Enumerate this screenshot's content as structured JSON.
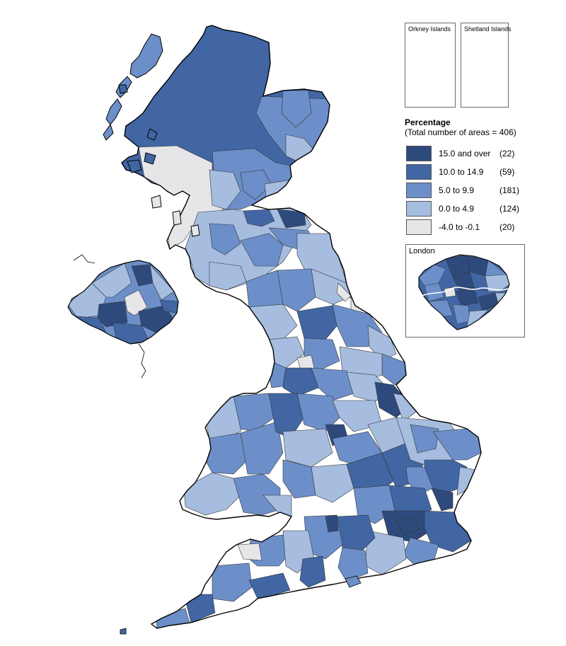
{
  "colors": {
    "c15": "#2e4a7c",
    "c10": "#4166a3",
    "c5": "#6c8fc9",
    "c0": "#a6bde0",
    "cneg": "#e6e6e8",
    "border": "#333333"
  },
  "insets": {
    "orkney": "Orkney Islands",
    "shetland": "Shetland Islands",
    "london": "London"
  },
  "legend": {
    "title": "Percentage",
    "subtitle": "(Total number of areas = 406)",
    "items": [
      {
        "range": "15.0 and over",
        "count": "(22)",
        "color": "#2e4a7c"
      },
      {
        "range": "10.0 to 14.9",
        "count": "(59)",
        "color": "#4166a3"
      },
      {
        "range": "5.0 to 9.9",
        "count": "(181)",
        "color": "#6c8fc9"
      },
      {
        "range": "0.0 to 4.9",
        "count": "(124)",
        "color": "#a6bde0"
      },
      {
        "range": "-4.0 to -0.1",
        "count": "(20)",
        "color": "#e6e6e8"
      }
    ]
  }
}
